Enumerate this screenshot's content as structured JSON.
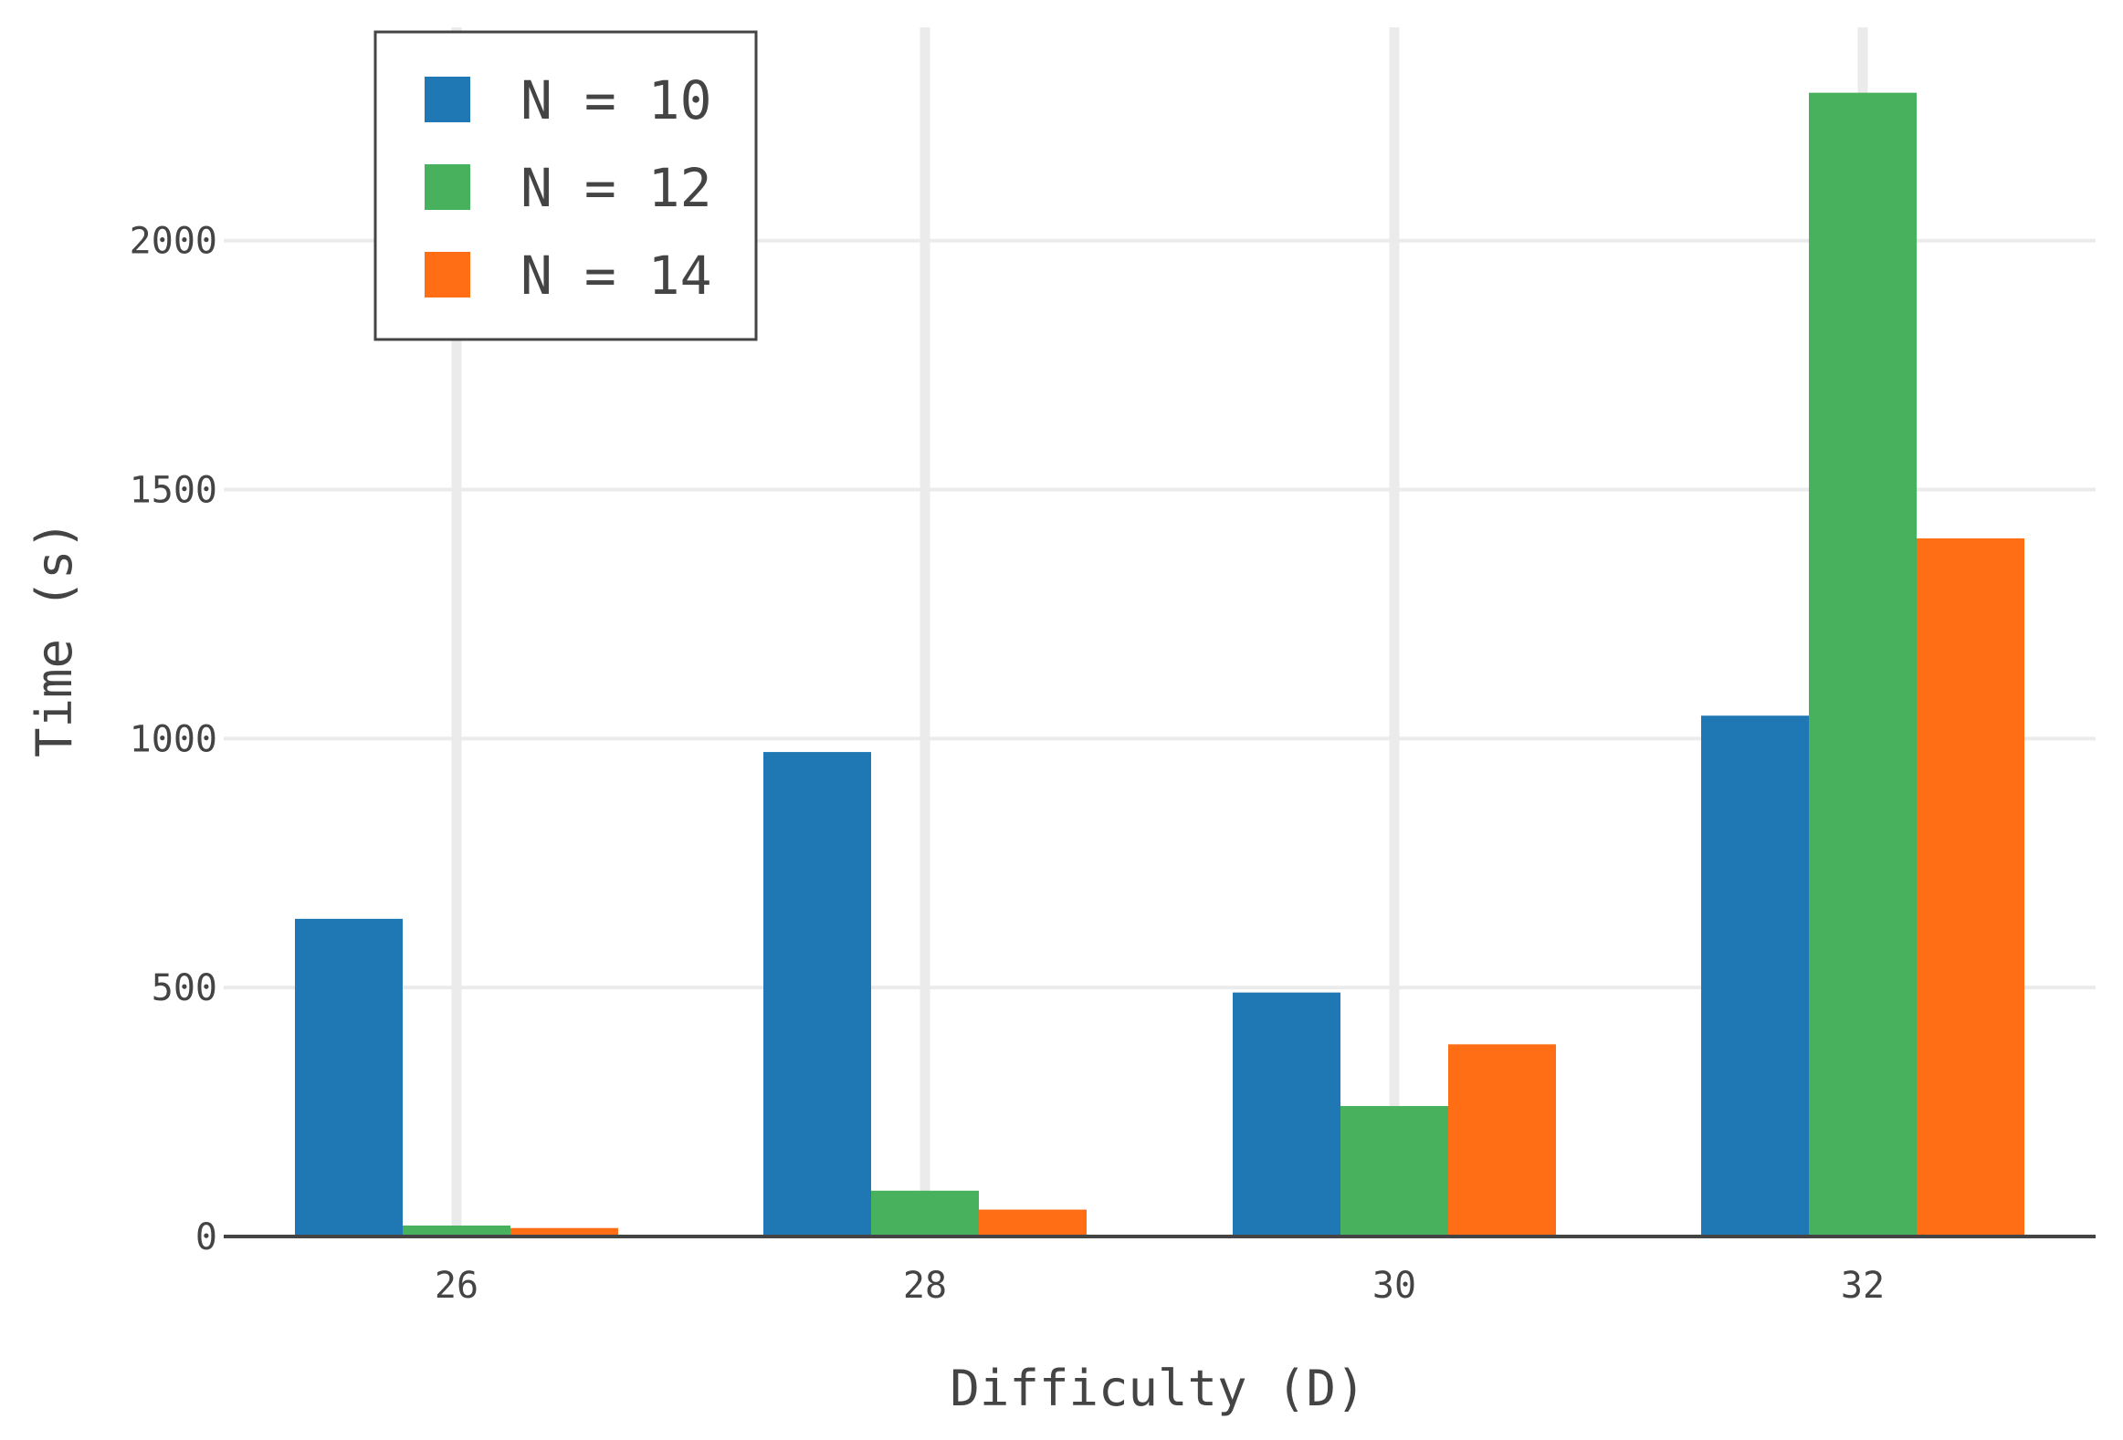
{
  "chart_data": {
    "type": "bar",
    "title": "",
    "xlabel": "Difficulty (D)",
    "ylabel": "Time (s)",
    "categories": [
      "26",
      "28",
      "30",
      "32"
    ],
    "series": [
      {
        "name": "N = 10",
        "color": "#1f77b4",
        "values": [
          638,
          973,
          490,
          1046
        ]
      },
      {
        "name": "N = 12",
        "color": "#48b15d",
        "values": [
          22,
          92,
          262,
          2297
        ]
      },
      {
        "name": "N = 14",
        "color": "#ff6e14",
        "values": [
          17,
          54,
          386,
          1402
        ]
      }
    ],
    "ylim": [
      0,
      2300
    ],
    "yticks": [
      0,
      500,
      1000,
      1500,
      2000
    ],
    "grid": true,
    "legend_position": "top-left"
  }
}
